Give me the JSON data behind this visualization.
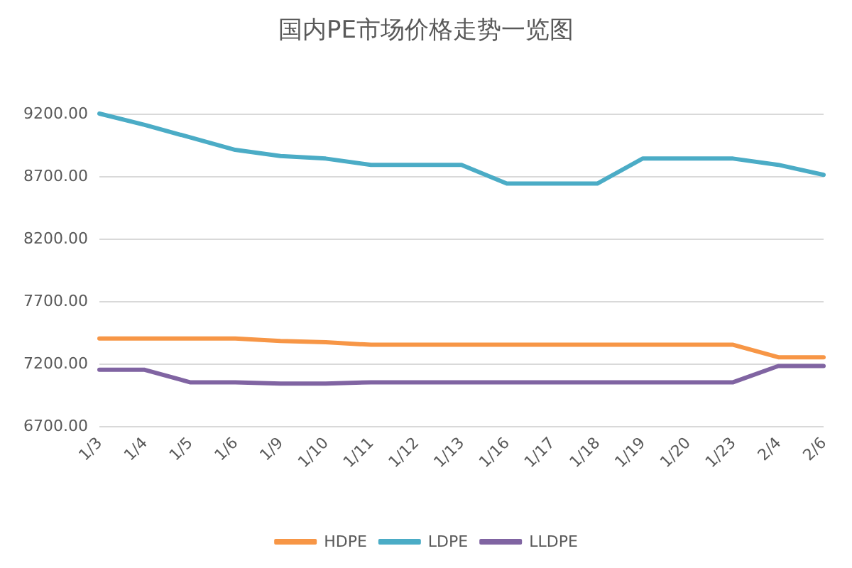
{
  "chart_data": {
    "type": "line",
    "title": "国内PE市场价格走势一览图",
    "categories": [
      "1/3",
      "1/4",
      "1/5",
      "1/6",
      "1/9",
      "1/10",
      "1/11",
      "1/12",
      "1/13",
      "1/16",
      "1/17",
      "1/18",
      "1/19",
      "1/20",
      "1/23",
      "2/4",
      "2/6"
    ],
    "series": [
      {
        "name": "HDPE",
        "color": "#f79646",
        "values": [
          7400,
          7400,
          7400,
          7400,
          7380,
          7370,
          7350,
          7350,
          7350,
          7350,
          7350,
          7350,
          7350,
          7350,
          7350,
          7250,
          7250
        ]
      },
      {
        "name": "LDPE",
        "color": "#4bacc6",
        "values": [
          9200,
          9110,
          9010,
          8910,
          8860,
          8840,
          8790,
          8790,
          8790,
          8640,
          8640,
          8640,
          8840,
          8840,
          8840,
          8790,
          8710
        ]
      },
      {
        "name": "LLDPE",
        "color": "#8064a2",
        "values": [
          7150,
          7150,
          7050,
          7050,
          7040,
          7040,
          7050,
          7050,
          7050,
          7050,
          7050,
          7050,
          7050,
          7050,
          7050,
          7180,
          7180
        ]
      }
    ],
    "ylim": [
      6700,
      9200
    ],
    "yticks": [
      {
        "value": 6700,
        "label": "6700.00"
      },
      {
        "value": 7200,
        "label": "7200.00"
      },
      {
        "value": 7700,
        "label": "7700.00"
      },
      {
        "value": 8200,
        "label": "8200.00"
      },
      {
        "value": 8700,
        "label": "8700.00"
      },
      {
        "value": 9200,
        "label": "9200.00"
      }
    ],
    "grid": "y",
    "legend": "bottom",
    "marker": "none",
    "line_style": "solid"
  }
}
